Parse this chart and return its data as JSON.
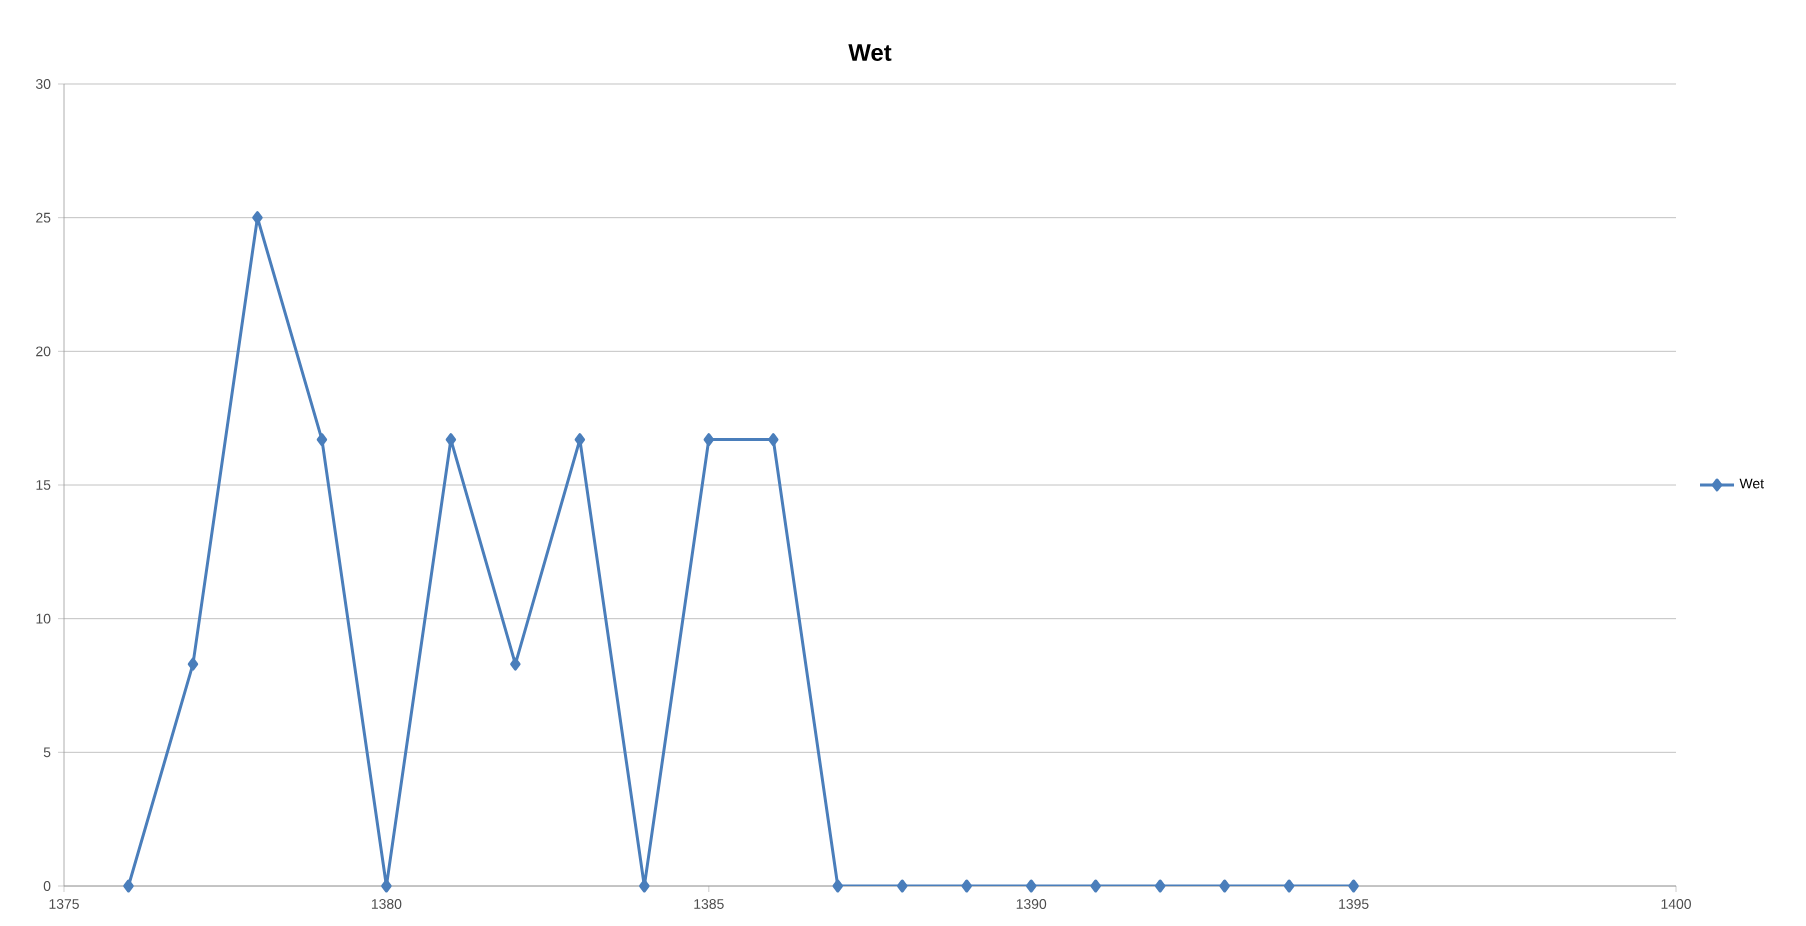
{
  "chart_data": {
    "type": "line",
    "title": "Wet",
    "x": [
      1376,
      1377,
      1378,
      1379,
      1380,
      1381,
      1382,
      1383,
      1384,
      1385,
      1386,
      1387,
      1388,
      1389,
      1390,
      1391,
      1392,
      1393,
      1394,
      1395
    ],
    "series": [
      {
        "name": "Wet",
        "color": "#4a7ebb",
        "values": [
          0,
          8.3,
          25,
          16.7,
          0,
          16.7,
          8.3,
          16.7,
          0,
          16.7,
          16.7,
          0,
          0,
          0,
          0,
          0,
          0,
          0,
          0,
          0
        ]
      }
    ],
    "xlim": [
      1375,
      1400
    ],
    "xticks": [
      1375,
      1380,
      1385,
      1390,
      1395,
      1400
    ],
    "ylim": [
      0,
      30
    ],
    "yticks": [
      0,
      5,
      10,
      15,
      20,
      25,
      30
    ],
    "grid": "y",
    "legend": "right",
    "marker": "diamond",
    "line_style": "solid"
  }
}
